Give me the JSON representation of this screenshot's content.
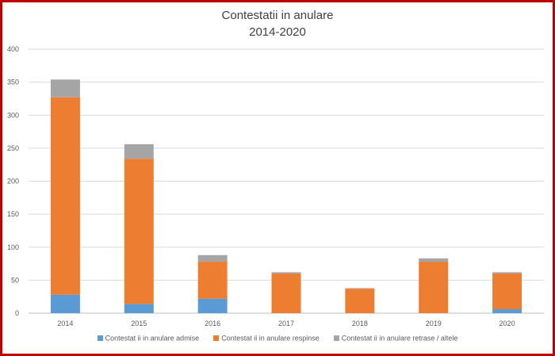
{
  "chart_data": {
    "type": "bar",
    "stacked": true,
    "title": "Contestatii in anulare",
    "subtitle": "2014-2020",
    "xlabel": "",
    "ylabel": "",
    "categories": [
      "2014",
      "2015",
      "2016",
      "2017",
      "2018",
      "2019",
      "2020"
    ],
    "ylim": [
      0,
      400
    ],
    "yticks": [
      0,
      50,
      100,
      150,
      200,
      250,
      300,
      350,
      400
    ],
    "grid": true,
    "legend_position": "bottom",
    "series": [
      {
        "name": "Contestat ii in anulare admise",
        "color": "#5b9bd5",
        "values": [
          28,
          14,
          22,
          0,
          0,
          0,
          6
        ]
      },
      {
        "name": "Contestat ii in anulare respinse",
        "color": "#ed7d31",
        "values": [
          299,
          220,
          56,
          60,
          37,
          78,
          54
        ]
      },
      {
        "name": "Contestat ii in anulare retrase / altele",
        "color": "#a5a5a5",
        "values": [
          27,
          22,
          10,
          2,
          1,
          5,
          2
        ]
      }
    ]
  }
}
